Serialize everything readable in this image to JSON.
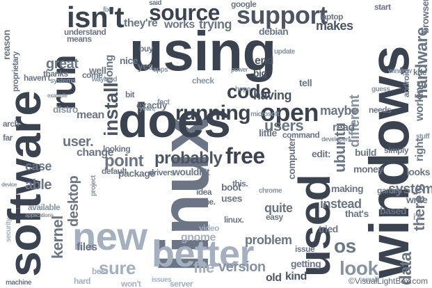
{
  "cloud": {
    "words": {
      "using": "using",
      "linux": "linux",
      "does": "does",
      "software": "software",
      "windows": "windows",
      "used": "used",
      "new": "new",
      "better": "better",
      "source": "source",
      "support": "support",
      "isnt": "isn't",
      "run": "run",
      "open": "open",
      "install": "install",
      "running": "running",
      "code": "code",
      "free": "free",
      "probably": "probably",
      "point": "point",
      "ubuntu": "ubuntu",
      "different": "different",
      "hardware": "hardware",
      "os": "os",
      "look": "look",
      "sure": "sure",
      "kernel": "kernel",
      "desktop": "desktop",
      "user": "user.",
      "users": "users",
      "having": "having",
      "maybe": "maybe",
      "theres": "there's",
      "data": "data",
      "systemd": "systemd",
      "right": "right",
      "working": "working",
      "browser": "browser",
      "makes": "makes",
      "debian": "debian",
      "trying": "trying",
      "works": "works",
      "theyre": "they're",
      "great": "great",
      "able": "able",
      "case": "case",
      "change": "change",
      "package": "package",
      "wouldnt": "wouldn't",
      "drivers": "drivers",
      "version": "version",
      "file": "file",
      "files": "files",
      "problem": "problem",
      "gnome": "gnome",
      "quite": "quite",
      "uses": "uses",
      "tried": "tried",
      "instead": "instead",
      "getting": "getting",
      "old": "old",
      "kind": "kind",
      "end": "end",
      "big": "big",
      "reason": "reason",
      "proprietary": "proprietary",
      "android": "android",
      "kde": "kde",
      "mean": "mean",
      "distro": "distro",
      "looking": "looking",
      "exactly": "exactly",
      "making": "making",
      "based": "based",
      "thats": "that's",
      "ill": "i'll",
      "google": "google",
      "said": "said",
      "start": "start",
      "laptop": "laptop",
      "means": "means",
      "buy": "buy",
      "nice": "nice",
      "yes": "yes,",
      "doing": "doing",
      "thanks": "thanks",
      "havent": "haven't",
      "well": "well,",
      "bit": "bit",
      "fact": "fact",
      "server": "server",
      "hard": "hard",
      "best": "best",
      "machine": "machine",
      "wont": "won't",
      "issue": "issue",
      "hope": "hope",
      "video": "video",
      "linux2": "linux.",
      "this": "this.",
      "boot": "boot",
      "idea": "idea",
      "time": "time.",
      "issues": "issues",
      "computer": "computer",
      "edit": "edit:",
      "money": "money",
      "games": "games",
      "write": "write",
      "looks": "looks",
      "build": "build",
      "simply": "simply",
      "needs": "needs",
      "little": "little",
      "command": "command",
      "read": "read",
      "tell": "tell",
      "come": "come",
      "understand": "understand",
      "arch": "arch",
      "far": "far",
      "security": "security",
      "available": "available",
      "easy": "easy",
      "project": "project",
      "default": "default",
      "apps": "apps",
      "update": "update",
      "support2": "support",
      "window": "window",
      "guess": "guess",
      "stuff": "stuff",
      "fix": "fix",
      "small": "small",
      "yeah": "yeah,",
      "wayland": "wayland",
      "systems": "systems",
      "microsoft": "microsoft",
      "chrome": "chrome",
      "check": "check",
      "example": "example",
      "applications": "applications",
      "device": "device",
      "developers": "developers",
      "power": "power"
    },
    "watermark": "©VisualLightBox.com"
  }
}
